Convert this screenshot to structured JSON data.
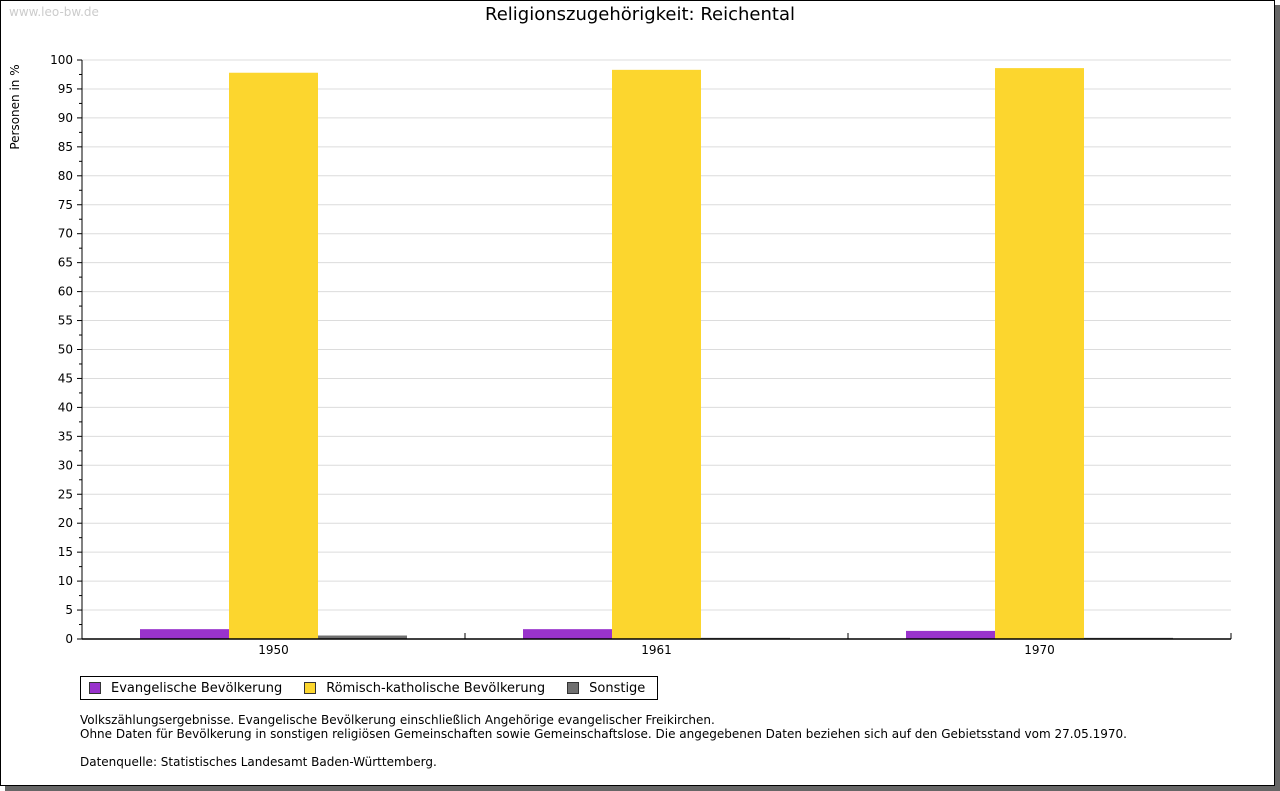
{
  "watermark": "www.leo-bw.de",
  "chart_data": {
    "type": "bar",
    "title": "Religionszugehörigkeit: Reichental",
    "ylabel": "Personen in %",
    "xlabel": "",
    "ylim": [
      0,
      100
    ],
    "yticks": [
      0,
      5,
      10,
      15,
      20,
      25,
      30,
      35,
      40,
      45,
      50,
      55,
      60,
      65,
      70,
      75,
      80,
      85,
      90,
      95,
      100
    ],
    "categories": [
      "1950",
      "1961",
      "1970"
    ],
    "series": [
      {
        "name": "Evangelische Bevölkerung",
        "color": "#9933cc",
        "values": [
          1.7,
          1.7,
          1.4
        ]
      },
      {
        "name": "Römisch-katholische Bevölkerung",
        "color": "#fcd62e",
        "values": [
          97.8,
          98.3,
          98.6
        ]
      },
      {
        "name": "Sonstige",
        "color": "#707070",
        "values": [
          0.6,
          0.2,
          0.2
        ]
      }
    ],
    "grid": true,
    "legend": "bottom-left"
  },
  "notes": [
    "Volkszählungsergebnisse. Evangelische Bevölkerung einschließlich Angehörige evangelischer Freikirchen.",
    "Ohne Daten für Bevölkerung in sonstigen religiösen Gemeinschaften sowie Gemeinschaftslose. Die angegebenen Daten beziehen sich auf den Gebietsstand vom 27.05.1970.",
    "",
    "Datenquelle: Statistisches Landesamt Baden-Württemberg."
  ]
}
